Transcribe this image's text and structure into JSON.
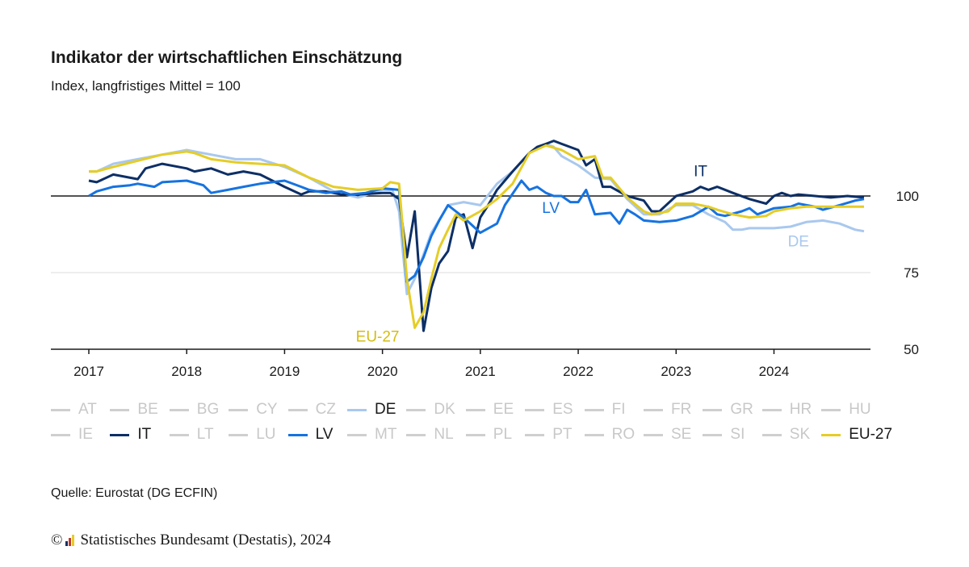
{
  "title": "Indikator der wirtschaftlichen Einschätzung",
  "subtitle": "Index, langfristiges Mittel = 100",
  "source": "Quelle: Eurostat (DG ECFIN)",
  "copyright": {
    "symbol": "©",
    "text": "Statistisches Bundesamt (Destatis), 2024"
  },
  "colors": {
    "DE": "#a9c8ee",
    "IT": "#0d2f66",
    "LV": "#1673e0",
    "EU-27": "#e5cd27",
    "inactive": "#cfcfcf",
    "axis": "#1a1a1a",
    "grid": "#dddddd"
  },
  "legend": [
    {
      "label": "AT",
      "active": false
    },
    {
      "label": "BE",
      "active": false
    },
    {
      "label": "BG",
      "active": false
    },
    {
      "label": "CY",
      "active": false
    },
    {
      "label": "CZ",
      "active": false
    },
    {
      "label": "DE",
      "active": true
    },
    {
      "label": "DK",
      "active": false
    },
    {
      "label": "EE",
      "active": false
    },
    {
      "label": "ES",
      "active": false
    },
    {
      "label": "FI",
      "active": false
    },
    {
      "label": "FR",
      "active": false
    },
    {
      "label": "GR",
      "active": false
    },
    {
      "label": "HR",
      "active": false
    },
    {
      "label": "HU",
      "active": false
    },
    {
      "label": "IE",
      "active": false
    },
    {
      "label": "IT",
      "active": true
    },
    {
      "label": "LT",
      "active": false
    },
    {
      "label": "LU",
      "active": false
    },
    {
      "label": "LV",
      "active": true
    },
    {
      "label": "MT",
      "active": false
    },
    {
      "label": "NL",
      "active": false
    },
    {
      "label": "PL",
      "active": false
    },
    {
      "label": "PT",
      "active": false
    },
    {
      "label": "RO",
      "active": false
    },
    {
      "label": "SE",
      "active": false
    },
    {
      "label": "SI",
      "active": false
    },
    {
      "label": "SK",
      "active": false
    },
    {
      "label": "EU-27",
      "active": true
    }
  ],
  "chart_data": {
    "type": "line",
    "title": "Indikator der wirtschaftlichen Einschätzung",
    "subtitle": "Index, langfristiges Mittel = 100",
    "xlabel": "",
    "ylabel": "",
    "x_ticks": [
      "2017",
      "2018",
      "2019",
      "2020",
      "2021",
      "2022",
      "2023",
      "2024"
    ],
    "y_ticks": [
      50,
      75,
      100
    ],
    "ylim": [
      50,
      117
    ],
    "xlim": [
      2017,
      2024.92
    ],
    "reference_line": 100,
    "grid": true,
    "series": [
      {
        "name": "DE",
        "label_pos": "lower-right",
        "points": [
          [
            2017,
            108
          ],
          [
            2017.08,
            108
          ],
          [
            2017.25,
            110.5
          ],
          [
            2017.5,
            112
          ],
          [
            2017.75,
            113.5
          ],
          [
            2018,
            115
          ],
          [
            2018.25,
            113.5
          ],
          [
            2018.5,
            112
          ],
          [
            2018.75,
            112
          ],
          [
            2019,
            109.5
          ],
          [
            2019.25,
            106
          ],
          [
            2019.5,
            101.5
          ],
          [
            2019.75,
            99.5
          ],
          [
            2020,
            102
          ],
          [
            2020.1,
            102
          ],
          [
            2020.17,
            95
          ],
          [
            2020.25,
            68
          ],
          [
            2020.33,
            73
          ],
          [
            2020.5,
            88
          ],
          [
            2020.67,
            97
          ],
          [
            2020.83,
            98
          ],
          [
            2021,
            97
          ],
          [
            2021.17,
            104
          ],
          [
            2021.33,
            108
          ],
          [
            2021.5,
            114
          ],
          [
            2021.67,
            117
          ],
          [
            2021.75,
            116
          ],
          [
            2021.83,
            113
          ],
          [
            2022,
            110
          ],
          [
            2022.17,
            106
          ],
          [
            2022.33,
            105.5
          ],
          [
            2022.5,
            99
          ],
          [
            2022.67,
            94
          ],
          [
            2022.83,
            94
          ],
          [
            2023,
            97
          ],
          [
            2023.17,
            97
          ],
          [
            2023.33,
            94
          ],
          [
            2023.5,
            91.5
          ],
          [
            2023.58,
            89
          ],
          [
            2023.67,
            89
          ],
          [
            2023.75,
            89.5
          ],
          [
            2023.83,
            89.5
          ],
          [
            2024,
            89.5
          ],
          [
            2024.17,
            90
          ],
          [
            2024.33,
            91.5
          ],
          [
            2024.5,
            92
          ],
          [
            2024.67,
            91
          ],
          [
            2024.83,
            89
          ],
          [
            2024.92,
            88.5
          ]
        ]
      },
      {
        "name": "IT",
        "label_pos": "top",
        "points": [
          [
            2017,
            105
          ],
          [
            2017.08,
            104.5
          ],
          [
            2017.25,
            107
          ],
          [
            2017.5,
            105.5
          ],
          [
            2017.58,
            109
          ],
          [
            2017.75,
            110.5
          ],
          [
            2018,
            109
          ],
          [
            2018.08,
            108
          ],
          [
            2018.25,
            109
          ],
          [
            2018.42,
            107
          ],
          [
            2018.58,
            108
          ],
          [
            2018.75,
            107
          ],
          [
            2019,
            103
          ],
          [
            2019.17,
            100.5
          ],
          [
            2019.25,
            101.5
          ],
          [
            2019.42,
            101.5
          ],
          [
            2019.58,
            100.5
          ],
          [
            2019.75,
            100.5
          ],
          [
            2020,
            101
          ],
          [
            2020.08,
            101
          ],
          [
            2020.17,
            99
          ],
          [
            2020.25,
            80
          ],
          [
            2020.33,
            95
          ],
          [
            2020.42,
            56
          ],
          [
            2020.5,
            70
          ],
          [
            2020.58,
            78
          ],
          [
            2020.67,
            82
          ],
          [
            2020.75,
            93
          ],
          [
            2020.83,
            94
          ],
          [
            2020.92,
            83
          ],
          [
            2021,
            93
          ],
          [
            2021.08,
            97
          ],
          [
            2021.17,
            102
          ],
          [
            2021.33,
            108
          ],
          [
            2021.5,
            114
          ],
          [
            2021.58,
            116
          ],
          [
            2021.67,
            117
          ],
          [
            2021.75,
            118
          ],
          [
            2021.83,
            117
          ],
          [
            2022,
            115
          ],
          [
            2022.08,
            110
          ],
          [
            2022.17,
            112
          ],
          [
            2022.25,
            103
          ],
          [
            2022.33,
            103
          ],
          [
            2022.5,
            100
          ],
          [
            2022.67,
            98.5
          ],
          [
            2022.75,
            95
          ],
          [
            2022.83,
            95
          ],
          [
            2023,
            100
          ],
          [
            2023.17,
            101.5
          ],
          [
            2023.25,
            103
          ],
          [
            2023.33,
            102
          ],
          [
            2023.42,
            103
          ],
          [
            2023.58,
            101
          ],
          [
            2023.75,
            99
          ],
          [
            2023.92,
            97.5
          ],
          [
            2024,
            100
          ],
          [
            2024.08,
            101
          ],
          [
            2024.17,
            100
          ],
          [
            2024.25,
            100.5
          ],
          [
            2024.42,
            100
          ],
          [
            2024.58,
            99.5
          ],
          [
            2024.75,
            100
          ],
          [
            2024.92,
            99.5
          ]
        ]
      },
      {
        "name": "LV",
        "label_pos": "center",
        "points": [
          [
            2017,
            100
          ],
          [
            2017.08,
            101.5
          ],
          [
            2017.25,
            103
          ],
          [
            2017.42,
            103.5
          ],
          [
            2017.5,
            104
          ],
          [
            2017.67,
            103
          ],
          [
            2017.75,
            104.5
          ],
          [
            2018,
            105
          ],
          [
            2018.17,
            103.5
          ],
          [
            2018.25,
            101
          ],
          [
            2018.42,
            102
          ],
          [
            2018.58,
            103
          ],
          [
            2018.75,
            104
          ],
          [
            2019,
            105
          ],
          [
            2019.17,
            103
          ],
          [
            2019.25,
            102
          ],
          [
            2019.42,
            101
          ],
          [
            2019.58,
            101.5
          ],
          [
            2019.67,
            100.5
          ],
          [
            2019.83,
            101
          ],
          [
            2020,
            102.5
          ],
          [
            2020.17,
            102
          ],
          [
            2020.25,
            72
          ],
          [
            2020.33,
            74
          ],
          [
            2020.42,
            80
          ],
          [
            2020.5,
            87
          ],
          [
            2020.58,
            92
          ],
          [
            2020.67,
            97
          ],
          [
            2020.75,
            95
          ],
          [
            2020.83,
            93
          ],
          [
            2021,
            88
          ],
          [
            2021.17,
            91
          ],
          [
            2021.25,
            97
          ],
          [
            2021.42,
            105
          ],
          [
            2021.5,
            102
          ],
          [
            2021.58,
            103
          ],
          [
            2021.67,
            101
          ],
          [
            2021.75,
            100
          ],
          [
            2021.83,
            100
          ],
          [
            2021.92,
            98
          ],
          [
            2022,
            98
          ],
          [
            2022.08,
            102
          ],
          [
            2022.17,
            94
          ],
          [
            2022.33,
            94.5
          ],
          [
            2022.42,
            91
          ],
          [
            2022.5,
            95.5
          ],
          [
            2022.58,
            94
          ],
          [
            2022.67,
            92
          ],
          [
            2022.83,
            91.5
          ],
          [
            2023,
            92
          ],
          [
            2023.17,
            93.5
          ],
          [
            2023.33,
            96.5
          ],
          [
            2023.42,
            94
          ],
          [
            2023.5,
            93.5
          ],
          [
            2023.67,
            95
          ],
          [
            2023.75,
            96
          ],
          [
            2023.83,
            94
          ],
          [
            2024,
            96
          ],
          [
            2024.17,
            96.5
          ],
          [
            2024.25,
            97.5
          ],
          [
            2024.42,
            96.5
          ],
          [
            2024.5,
            95.5
          ],
          [
            2024.67,
            97
          ],
          [
            2024.83,
            98.5
          ],
          [
            2024.92,
            99
          ]
        ]
      },
      {
        "name": "EU-27",
        "label_pos": "bottom",
        "points": [
          [
            2017,
            108
          ],
          [
            2017.08,
            108
          ],
          [
            2017.25,
            109.5
          ],
          [
            2017.5,
            111.5
          ],
          [
            2017.75,
            113.5
          ],
          [
            2018,
            114.5
          ],
          [
            2018.08,
            114
          ],
          [
            2018.25,
            112
          ],
          [
            2018.5,
            111
          ],
          [
            2018.75,
            110.5
          ],
          [
            2019,
            110
          ],
          [
            2019.25,
            106
          ],
          [
            2019.5,
            103
          ],
          [
            2019.75,
            102
          ],
          [
            2020,
            102.5
          ],
          [
            2020.08,
            104.5
          ],
          [
            2020.17,
            104
          ],
          [
            2020.25,
            73
          ],
          [
            2020.33,
            57
          ],
          [
            2020.42,
            62
          ],
          [
            2020.5,
            73
          ],
          [
            2020.58,
            83
          ],
          [
            2020.67,
            89
          ],
          [
            2020.75,
            94
          ],
          [
            2020.83,
            92
          ],
          [
            2021,
            95
          ],
          [
            2021.17,
            99
          ],
          [
            2021.33,
            104
          ],
          [
            2021.5,
            114
          ],
          [
            2021.67,
            116.5
          ],
          [
            2021.83,
            115
          ],
          [
            2022,
            112
          ],
          [
            2022.17,
            113
          ],
          [
            2022.25,
            106
          ],
          [
            2022.33,
            106
          ],
          [
            2022.5,
            99.5
          ],
          [
            2022.67,
            95
          ],
          [
            2022.75,
            94
          ],
          [
            2022.92,
            95
          ],
          [
            2023,
            97.5
          ],
          [
            2023.17,
            97.5
          ],
          [
            2023.33,
            96.5
          ],
          [
            2023.42,
            95.5
          ],
          [
            2023.58,
            94
          ],
          [
            2023.75,
            93
          ],
          [
            2023.92,
            93.5
          ],
          [
            2024,
            95
          ],
          [
            2024.17,
            96
          ],
          [
            2024.33,
            96.5
          ],
          [
            2024.5,
            96.5
          ],
          [
            2024.67,
            96.5
          ],
          [
            2024.83,
            96.5
          ],
          [
            2024.92,
            96.5
          ]
        ]
      }
    ]
  }
}
